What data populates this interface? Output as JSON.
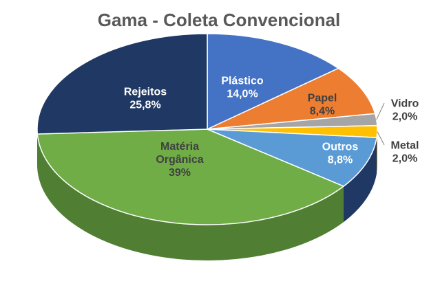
{
  "chart_data": {
    "type": "pie",
    "title": "Gama - Coleta Convencional",
    "series": [
      {
        "name": "",
        "slices": [
          {
            "label": [
              "Plástico"
            ],
            "value_label": "14,0%",
            "value": 14.0,
            "color": "#4472C4",
            "side": "#2F528F",
            "label_color": "#ffffff"
          },
          {
            "label": [
              "Papel"
            ],
            "value_label": "8,4%",
            "value": 8.4,
            "color": "#ED7D31",
            "side": "#AE5A21",
            "label_color": "#404040"
          },
          {
            "label": [
              "Vidro"
            ],
            "value_label": "2,0%",
            "value": 2.0,
            "color": "#A5A5A5",
            "side": "#7B7B7B",
            "label_color": "#404040"
          },
          {
            "label": [
              "Metal"
            ],
            "value_label": "2,0%",
            "value": 2.0,
            "color": "#FFC000",
            "side": "#BF9000",
            "label_color": "#404040"
          },
          {
            "label": [
              "Outros"
            ],
            "value_label": "8,8%",
            "value": 8.8,
            "color": "#5B9BD5",
            "side": "#203864",
            "label_color": "#ffffff"
          },
          {
            "label": [
              "Matéria",
              "Orgânica"
            ],
            "value_label": "39%",
            "value": 39.0,
            "color": "#70AD47",
            "side": "#507E32",
            "label_color": "#404040"
          },
          {
            "label": [
              "Rejeitos"
            ],
            "value_label": "25,8%",
            "value": 25.8,
            "color": "#203864",
            "side": "#152545",
            "label_color": "#ffffff"
          }
        ]
      }
    ],
    "legend": "none",
    "start": "12 o'clock",
    "direction": "clockwise",
    "style": "3d"
  }
}
